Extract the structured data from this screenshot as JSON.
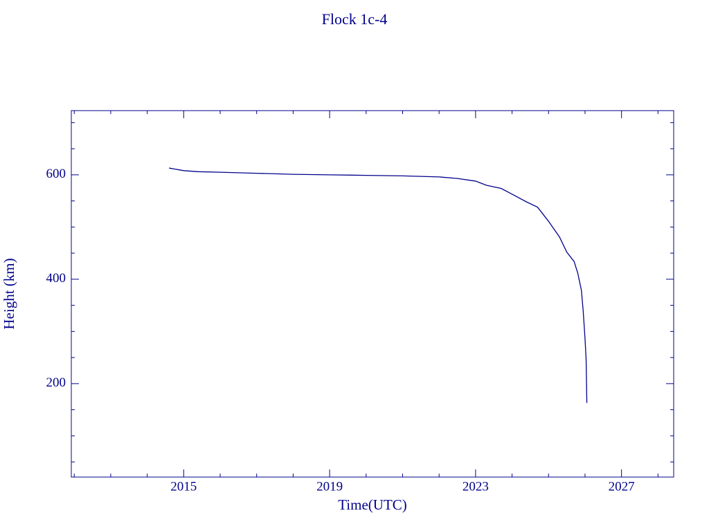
{
  "chart_data": {
    "type": "line",
    "title": "Flock 1c-4",
    "xlabel": "Time(UTC)",
    "ylabel": "Height (km)",
    "x": [
      2014.6,
      2015.0,
      2015.4,
      2016.0,
      2017.0,
      2018.0,
      2019.0,
      2020.0,
      2021.0,
      2022.0,
      2022.5,
      2023.0,
      2023.3,
      2023.7,
      2024.0,
      2024.4,
      2024.7,
      2025.0,
      2025.3,
      2025.5,
      2025.7,
      2025.8,
      2025.9,
      2025.95,
      2026.0,
      2026.03,
      2026.05
    ],
    "series": [
      {
        "name": "Height",
        "color": "#00008b",
        "values": [
          613,
          608,
          606,
          605,
          603,
          601,
          600,
          599,
          598,
          596,
          593,
          588,
          580,
          574,
          563,
          548,
          538,
          511,
          481,
          452,
          434,
          412,
          379,
          339,
          286,
          246,
          163
        ]
      }
    ],
    "xlim": [
      2011.92,
      2028.43
    ],
    "ylim": [
      21,
      723
    ],
    "xticks": [
      2015,
      2019,
      2023,
      2027
    ],
    "yticks": [
      200,
      400,
      600
    ],
    "minor_xticks": [
      2012,
      2013,
      2014,
      2016,
      2017,
      2018,
      2020,
      2021,
      2022,
      2024,
      2025,
      2026,
      2028
    ],
    "minor_yticks": [
      50,
      100,
      150,
      250,
      300,
      350,
      450,
      500,
      550,
      650,
      700
    ],
    "axis_color": "#00008b"
  }
}
